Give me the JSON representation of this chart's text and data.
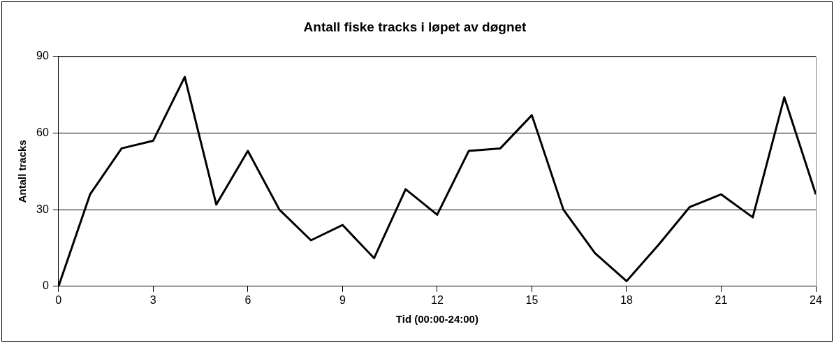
{
  "chart_data": {
    "type": "line",
    "title": "Antall fiske tracks i løpet av døgnet",
    "xlabel": "Tid (00:00-24:00)",
    "ylabel": "Antall tracks",
    "x": [
      0,
      1,
      2,
      3,
      4,
      5,
      6,
      7,
      8,
      9,
      10,
      11,
      12,
      13,
      14,
      15,
      16,
      17,
      18,
      19,
      20,
      21,
      22,
      23,
      24
    ],
    "series": [
      {
        "color": "#000000",
        "values": [
          0,
          36,
          54,
          57,
          82,
          32,
          53,
          30,
          18,
          24,
          11,
          38,
          28,
          53,
          54,
          67,
          30,
          13,
          2,
          16,
          31,
          36,
          27,
          74,
          36
        ]
      }
    ],
    "xlim": [
      0,
      24
    ],
    "xticks": [
      0,
      3,
      6,
      9,
      12,
      15,
      18,
      21,
      24
    ],
    "ylim": [
      0,
      90
    ],
    "yticks": [
      0,
      30,
      60,
      90
    ],
    "grid": "y",
    "legend": false,
    "marker": "none",
    "line_style": "solid"
  }
}
